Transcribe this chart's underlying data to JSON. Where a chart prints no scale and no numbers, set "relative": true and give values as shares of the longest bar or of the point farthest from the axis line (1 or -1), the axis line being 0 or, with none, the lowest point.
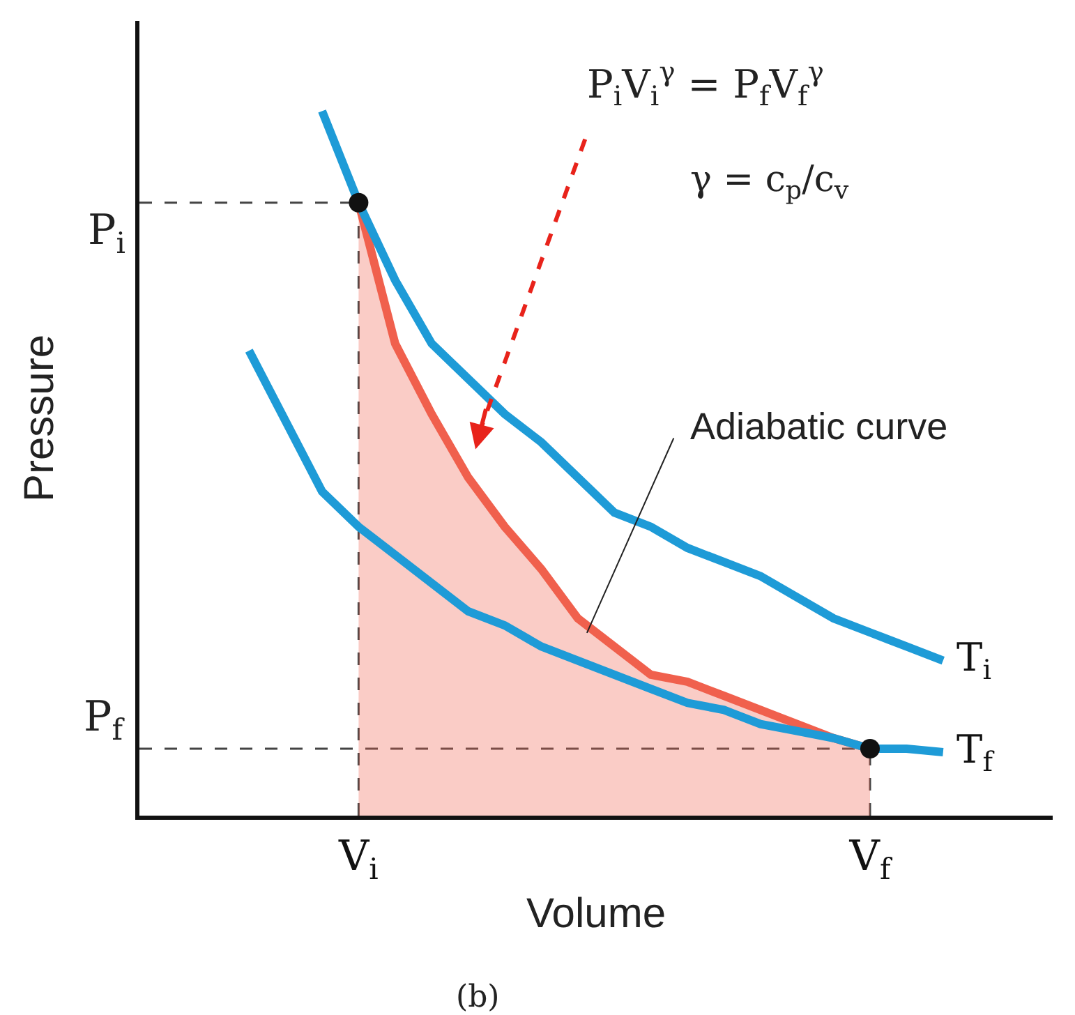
{
  "chart_data": {
    "type": "line",
    "xlabel": "Volume",
    "ylabel": "Pressure",
    "relative": true,
    "categories": [
      null,
      null,
      null,
      null,
      null,
      null,
      "V$_{i}$",
      null,
      null,
      null,
      null,
      null,
      null,
      null,
      null,
      null,
      null,
      null,
      null,
      null,
      "V$_{f}$",
      null,
      null,
      null,
      null,
      null
    ],
    "series": [
      {
        "type": "area",
        "color": "#f0604d",
        "values": [
          null,
          null,
          null,
          null,
          null,
          null,
          0.87,
          0.67,
          0.57,
          0.48,
          0.41,
          0.35,
          0.28,
          0.24,
          0.2,
          0.19,
          0.17,
          0.15,
          0.13,
          0.11,
          0.095,
          null,
          null,
          null,
          null,
          null
        ]
      },
      {
        "name": "T$_{i}$",
        "color": "#1e9bd7",
        "values": [
          null,
          null,
          null,
          null,
          null,
          1,
          0.87,
          0.76,
          0.67,
          0.62,
          0.57,
          0.53,
          0.48,
          0.43,
          0.41,
          0.38,
          0.36,
          0.34,
          0.31,
          0.28,
          0.26,
          0.24,
          0.22,
          null,
          null,
          null
        ]
      },
      {
        "name": "T$_{f}$",
        "color": "#1e9bd7",
        "values": [
          null,
          null,
          null,
          0.66,
          0.56,
          0.46,
          0.41,
          0.37,
          0.33,
          0.29,
          0.27,
          0.24,
          0.22,
          0.2,
          0.18,
          0.16,
          0.15,
          0.13,
          0.12,
          0.11,
          0.095,
          0.095,
          0.09,
          null,
          null,
          null
        ]
      },
      {
        "type": "scatter",
        "marker": "circle",
        "color": "#111111",
        "x": [
          "V$_{i}$",
          "V$_{f}$"
        ],
        "values": [
          0.87,
          0.095
        ]
      }
    ],
    "annotations": [
      "P$_{i}$V$_{i}$$^{γ}$ = P$_{f}$V$_{f}$$^{γ}$",
      "γ = c$_{p}$/c$_{v}$",
      "Adiabatic curve",
      "(b)",
      "P$_{i}$",
      "P$_{f}$"
    ]
  }
}
